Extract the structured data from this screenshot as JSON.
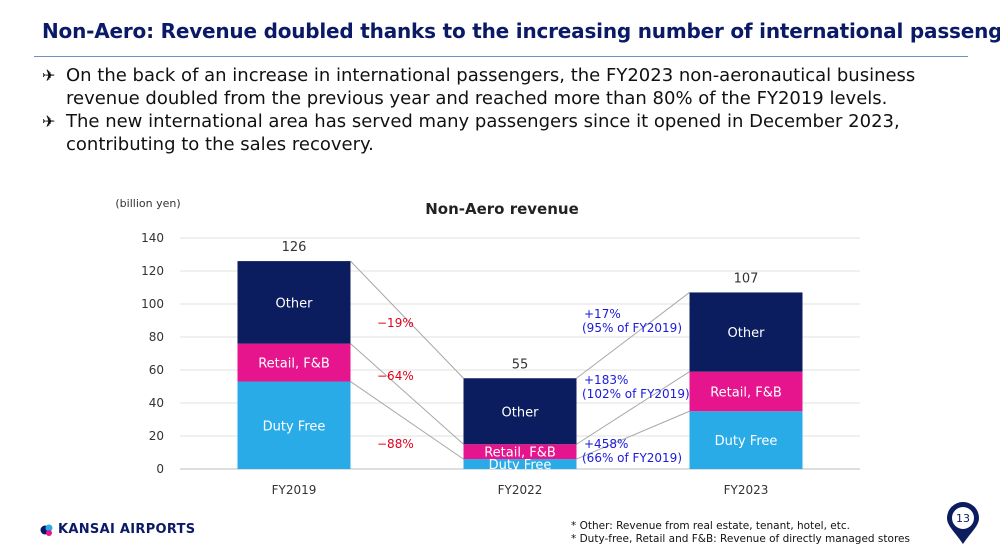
{
  "title": "Non-Aero:  Revenue doubled thanks to the increasing number of international passengers",
  "bullets": [
    "On the back of an increase in international passengers, the FY2023 non-aeronautical business revenue doubled from the previous year and reached more than 80% of the FY2019 levels.",
    "The new international area has served many passengers since it opened in December 2023, contributing to the sales recovery."
  ],
  "chart_data": {
    "type": "bar",
    "stacked": true,
    "title": "Non-Aero revenue",
    "ylabel": "(billion yen)",
    "ylim": [
      0,
      140
    ],
    "yticks": [
      "0",
      "20",
      "40",
      "60",
      "80",
      "100",
      "120",
      "140"
    ],
    "categories": [
      "FY2019",
      "FY2022",
      "FY2023"
    ],
    "series": [
      {
        "name": "Duty Free",
        "color": "#29abe8",
        "values": [
          53,
          6,
          35
        ]
      },
      {
        "name": "Retail, F&B",
        "color": "#e6158d",
        "values": [
          23,
          9,
          24
        ]
      },
      {
        "name": "Other",
        "color": "#0b1d5e",
        "values": [
          50,
          40,
          48
        ]
      }
    ],
    "totals": [
      "126",
      "55",
      "107"
    ],
    "changes_2022": [
      "−19%",
      "−64%",
      "−88%"
    ],
    "changes_2023": [
      {
        "pct": "+17%",
        "rel": "(95% of FY2019)"
      },
      {
        "pct": "+183%",
        "rel": "(102% of FY2019)"
      },
      {
        "pct": "+458%",
        "rel": "(66% of FY2019)"
      }
    ]
  },
  "logo": {
    "text": "KANSAI AIRPORTS"
  },
  "notes": [
    "* Other: Revenue from real estate, tenant, hotel, etc.",
    "* Duty-free, Retail and F&B: Revenue of directly managed stores"
  ],
  "page_number": "13",
  "colors": {
    "title": "#0a1a66",
    "decrease": "#e0001b",
    "increase": "#1a1adb"
  }
}
